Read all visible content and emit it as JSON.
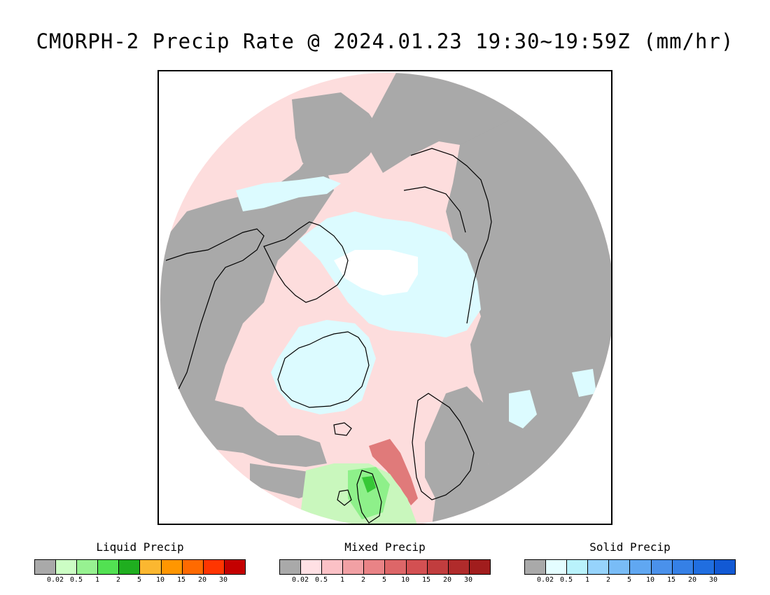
{
  "title": "CMORPH-2 Precip Rate @ 2024.01.23 19:30~19:59Z (mm/hr)",
  "map": {
    "projection": "polar-stereographic-north",
    "region": "Northern Hemisphere high latitudes",
    "colors": {
      "no_precip": "#a9a9a9",
      "mixed_light": "#fddddd",
      "mixed_mid": "#f6b4b4",
      "mixed_heavy": "#e07a7a",
      "solid_light": "#dcfbff",
      "solid_white": "#ffffff",
      "solid_blue": "#87c1f5",
      "liquid_light": "#c9f7bd",
      "liquid_mid": "#8ef08a",
      "liquid_heavy": "#37c837",
      "coastline": "#000000"
    }
  },
  "legends": [
    {
      "title": "Liquid Precip",
      "colors": [
        "#a9a9a9",
        "#ccfdc4",
        "#97f191",
        "#52e152",
        "#1fae1f",
        "#fbb730",
        "#ff9600",
        "#ff6a00",
        "#ff3500",
        "#c40000"
      ],
      "ticks": [
        "0.02",
        "0.5",
        "1",
        "2",
        "5",
        "10",
        "15",
        "20",
        "30"
      ]
    },
    {
      "title": "Mixed Precip",
      "colors": [
        "#a9a9a9",
        "#ffe0e4",
        "#fbc1c6",
        "#f1a0a4",
        "#e98386",
        "#dd6668",
        "#d35052",
        "#c13d3e",
        "#b02b2b",
        "#a11d1d"
      ],
      "ticks": [
        "0.02",
        "0.5",
        "1",
        "2",
        "5",
        "10",
        "15",
        "20",
        "30"
      ]
    },
    {
      "title": "Solid Precip",
      "colors": [
        "#a9a9a9",
        "#e4fdff",
        "#b9f2fb",
        "#96d3fb",
        "#79bcf6",
        "#60a7f1",
        "#4a91eb",
        "#3580e6",
        "#206ee0",
        "#1259d4"
      ],
      "ticks": [
        "0.02",
        "0.5",
        "1",
        "2",
        "5",
        "10",
        "15",
        "20",
        "30"
      ]
    }
  ]
}
